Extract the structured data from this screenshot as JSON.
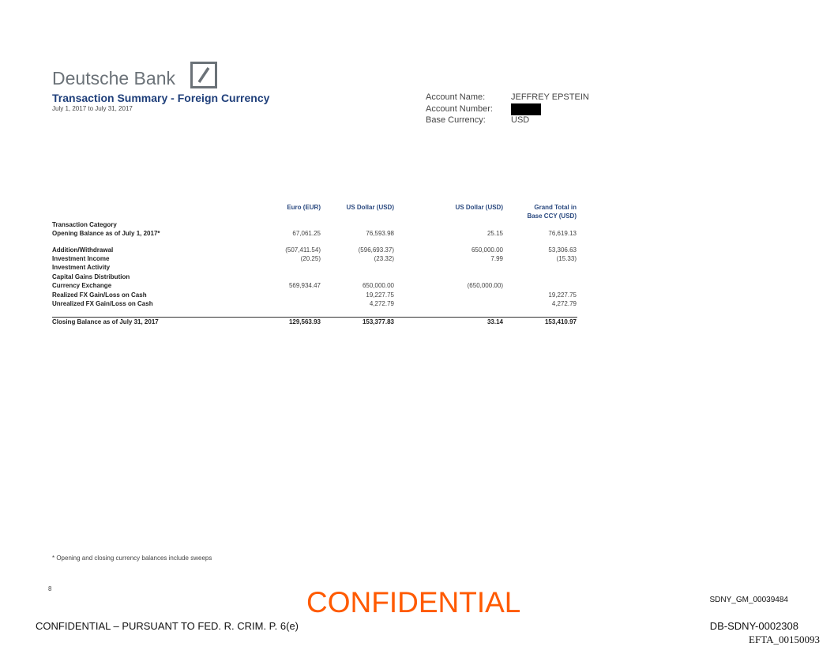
{
  "header": {
    "bank_name": "Deutsche Bank",
    "title": "Transaction Summary - Foreign Currency",
    "period": "July 1, 2017 to July 31, 2017"
  },
  "account": {
    "name_label": "Account Name:",
    "name_value": "JEFFREY EPSTEIN",
    "number_label": "Account Number:",
    "currency_label": "Base Currency:",
    "currency_value": "USD"
  },
  "table": {
    "columns": [
      "Euro (EUR)",
      "US Dollar (USD)",
      "US Dollar (USD)",
      "Grand Total in",
      "Base CCY (USD)"
    ],
    "category_header": "Transaction Category",
    "rows": [
      {
        "label": "Opening Balance as of July 1, 2017*",
        "values": [
          "67,061.25",
          "76,593.98",
          "25.15",
          "76,619.13"
        ]
      },
      {
        "label": "Addition/Withdrawal",
        "values": [
          "(507,411.54)",
          "(596,693.37)",
          "650,000.00",
          "53,306.63"
        ]
      },
      {
        "label": "Investment Income",
        "values": [
          "(20.25)",
          "(23.32)",
          "7.99",
          "(15.33)"
        ]
      },
      {
        "label": "Investment Activity",
        "values": [
          "",
          "",
          "",
          ""
        ]
      },
      {
        "label": "Capital Gains Distribution",
        "values": [
          "",
          "",
          "",
          ""
        ]
      },
      {
        "label": "Currency Exchange",
        "values": [
          "569,934.47",
          "650,000.00",
          "(650,000.00)",
          ""
        ]
      },
      {
        "label": "Realized FX Gain/Loss on Cash",
        "values": [
          "",
          "19,227.75",
          "",
          "19,227.75"
        ]
      },
      {
        "label": "Unrealized FX Gain/Loss on Cash",
        "values": [
          "",
          "4,272.79",
          "",
          "4,272.79"
        ]
      }
    ],
    "closing": {
      "label": "Closing Balance as of July 31, 2017",
      "values": [
        "129,563.93",
        "153,377.83",
        "33.14",
        "153,410.97"
      ]
    }
  },
  "footnote": "* Opening and closing currency balances include sweeps",
  "footer": {
    "page_number": "8",
    "confidential_stamp": "CONFIDENTIAL",
    "sdny_id": "SDNY_GM_00039484",
    "confidential_notice": "CONFIDENTIAL – PURSUANT TO FED. R. CRIM. P. 6(e)",
    "bates": "DB-SDNY-0002308",
    "efta": "EFTA_00150093"
  },
  "colors": {
    "title": "#1f3f7a",
    "logo_gray": "#6b7278",
    "stamp_orange": "#ff5a00"
  }
}
